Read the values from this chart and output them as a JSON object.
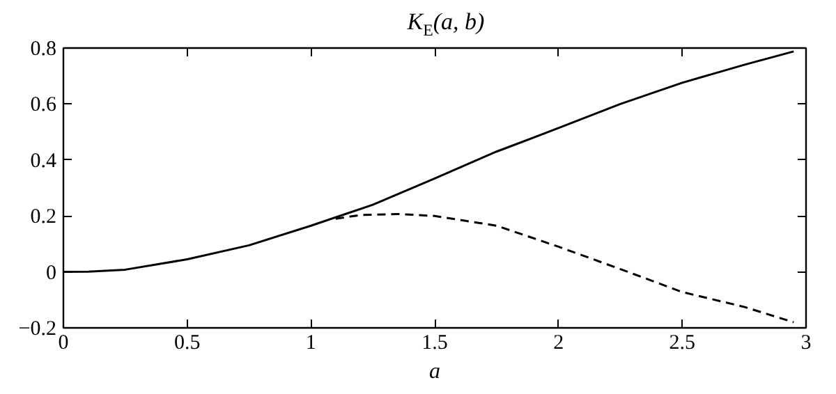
{
  "chart_data": {
    "type": "line",
    "title": "K$_{E}$(a, b)",
    "xlabel": "a",
    "series": [
      {
        "color": "#000000",
        "line_style": "solid",
        "x": [
          0,
          0.1,
          0.25,
          0.5,
          0.75,
          1.0,
          1.25,
          1.5,
          1.75,
          2.0,
          2.25,
          2.5,
          2.75,
          2.95
        ],
        "values": [
          0,
          0.001,
          0.008,
          0.045,
          0.095,
          0.165,
          0.24,
          0.334,
          0.43,
          0.514,
          0.6,
          0.676,
          0.74,
          0.788
        ]
      },
      {
        "color": "#000000",
        "line_style": "dashed",
        "x": [
          1.1,
          1.2,
          1.35,
          1.5,
          1.75,
          2.0,
          2.25,
          2.5,
          2.75,
          2.95
        ],
        "values": [
          0.19,
          0.203,
          0.207,
          0.2,
          0.165,
          0.09,
          0.01,
          -0.072,
          -0.125,
          -0.18
        ]
      }
    ],
    "xlim": [
      0,
      3
    ],
    "ylim": [
      -0.2,
      0.8
    ],
    "xticks": [
      0,
      0.5,
      1,
      1.5,
      2,
      2.5,
      3
    ],
    "yticks": [
      -0.2,
      0,
      0.2,
      0.4,
      0.6,
      0.8
    ],
    "grid": false,
    "marker": "none"
  }
}
